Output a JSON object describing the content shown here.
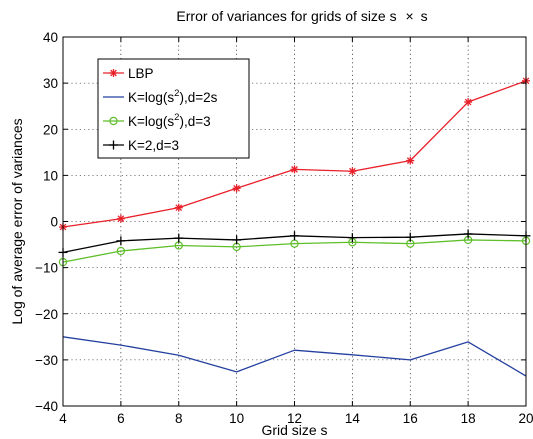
{
  "chart_data": {
    "type": "line",
    "title_prefix": "Error of variances for grids of size s",
    "title_times": "×",
    "title_suffix": "s",
    "xlabel": "Grid size s",
    "ylabel": "Log of average error of variances",
    "xlim": [
      4,
      20
    ],
    "ylim": [
      -40,
      40
    ],
    "x_ticks": [
      4,
      6,
      8,
      10,
      12,
      14,
      16,
      18,
      20
    ],
    "y_ticks": [
      -40,
      -30,
      -20,
      -10,
      0,
      10,
      20,
      30,
      40
    ],
    "x_tick_labels": [
      "4",
      "6",
      "8",
      "10",
      "12",
      "14",
      "16",
      "18",
      "20"
    ],
    "y_tick_labels": [
      "−40",
      "−30",
      "−20",
      "−10",
      "0",
      "10",
      "20",
      "30",
      "40"
    ],
    "grid": true,
    "legend_position": "top-left",
    "x": [
      4,
      6,
      8,
      10,
      12,
      14,
      16,
      18,
      20
    ],
    "series": [
      {
        "name": "LBP",
        "legend_parts": [
          "LBP"
        ],
        "color": "#e8202a",
        "marker": "asterisk",
        "values": [
          -1.2,
          0.6,
          3.0,
          7.2,
          11.3,
          10.9,
          13.2,
          25.9,
          30.5
        ]
      },
      {
        "name": "K=log(s2),d=2s",
        "legend_parts": [
          "K=log(s",
          "2",
          "),d=2s"
        ],
        "color": "#2540a0",
        "marker": "none",
        "values": [
          -25.0,
          -26.8,
          -29.0,
          -32.6,
          -27.9,
          -28.9,
          -30.0,
          -26.1,
          -33.5
        ]
      },
      {
        "name": "K=log(s2),d=3",
        "legend_parts": [
          "K=log(s",
          "2",
          "),d=3"
        ],
        "color": "#5fbf2a",
        "marker": "circle",
        "values": [
          -8.8,
          -6.4,
          -5.2,
          -5.5,
          -4.8,
          -4.5,
          -4.8,
          -4.0,
          -4.2
        ]
      },
      {
        "name": "K=2,d=3",
        "legend_parts": [
          "K=2,d=3"
        ],
        "color": "#000000",
        "marker": "plus",
        "values": [
          -6.7,
          -4.2,
          -3.6,
          -4.0,
          -3.1,
          -3.5,
          -3.4,
          -2.7,
          -3.1
        ]
      }
    ]
  }
}
